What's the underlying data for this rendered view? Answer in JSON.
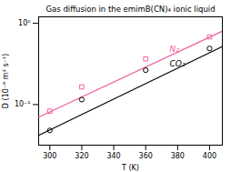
{
  "chart_data": {
    "type": "scatter",
    "title": "Gas diffusion in the emimB(CN)₄ ionic liquid",
    "x_label": "T (K)",
    "y_label": "D (10⁻⁸ m² s⁻¹)",
    "log": "y",
    "grid": false,
    "legend": false,
    "xlim": [
      293,
      408
    ],
    "xticks": [
      300,
      320,
      340,
      360,
      380,
      400
    ],
    "ylim": [
      0.0316228,
      1.202264
    ],
    "yticks": [
      {
        "value": 0.1,
        "label": "10⁻¹"
      },
      {
        "value": 1,
        "label": "10⁰"
      }
    ],
    "series": [
      {
        "name": "N₂",
        "color": "#f060a0",
        "marker": "square",
        "x": [
          300,
          320,
          360,
          400
        ],
        "values": [
          0.083,
          0.165,
          0.365,
          0.68
        ],
        "fit_x": [
          293,
          408
        ],
        "fit_values": [
          0.0699968,
          0.799835
        ]
      },
      {
        "name": "CO₂",
        "color": "#000000",
        "marker": "circle",
        "x": [
          300,
          320,
          360,
          400
        ],
        "values": [
          0.048,
          0.115,
          0.265,
          0.49
        ],
        "fit_x": [
          293,
          408
        ],
        "fit_values": [
          0.041687,
          0.5188
        ]
      }
    ],
    "annotations": [
      {
        "text": "N₂",
        "x": 375,
        "y": 0.48,
        "color": "#f060a0"
      },
      {
        "text": "CO₂",
        "x": 375,
        "y": 0.32,
        "color": "#000000"
      }
    ]
  }
}
